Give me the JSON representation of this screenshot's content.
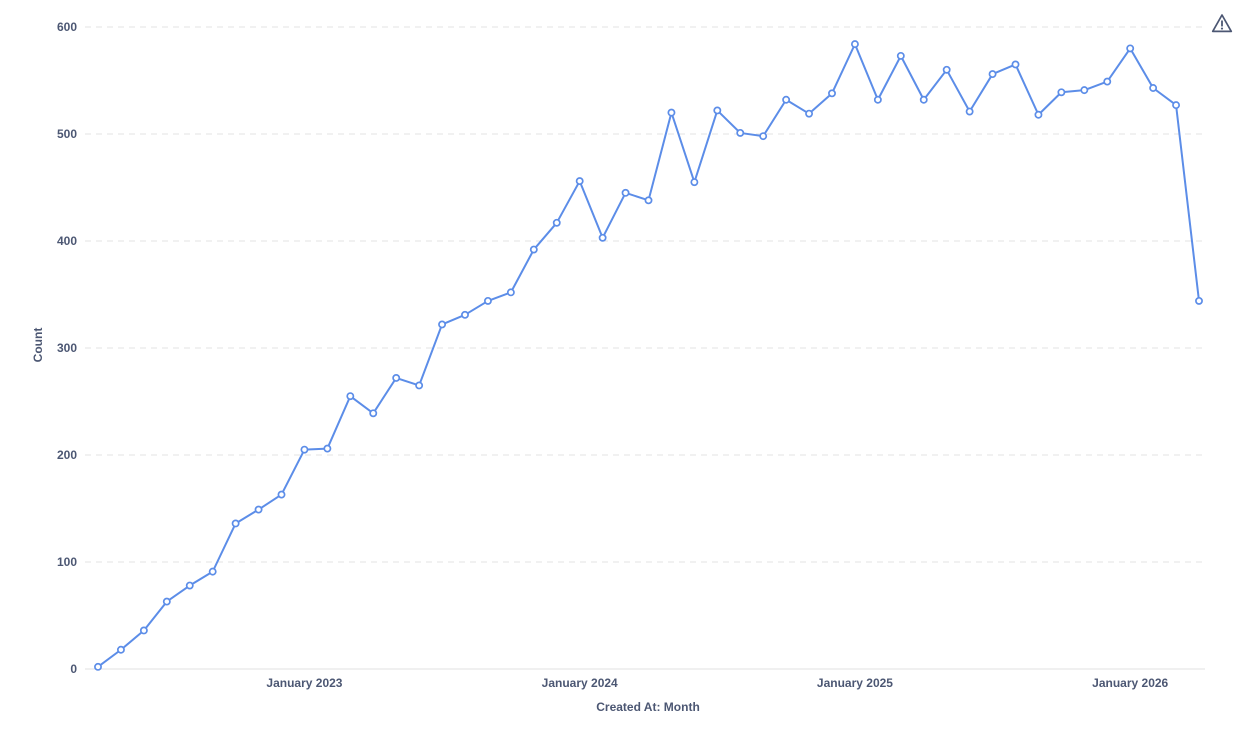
{
  "chart_data": {
    "type": "line",
    "title": "",
    "xlabel": "Created At: Month",
    "ylabel": "Count",
    "x": [
      "Apr 2022",
      "May 2022",
      "Jun 2022",
      "Jul 2022",
      "Aug 2022",
      "Sep 2022",
      "Oct 2022",
      "Nov 2022",
      "Dec 2022",
      "Jan 2023",
      "Feb 2023",
      "Mar 2023",
      "Apr 2023",
      "May 2023",
      "Jun 2023",
      "Jul 2023",
      "Aug 2023",
      "Sep 2023",
      "Oct 2023",
      "Nov 2023",
      "Dec 2023",
      "Jan 2024",
      "Feb 2024",
      "Mar 2024",
      "Apr 2024",
      "May 2024",
      "Jun 2024",
      "Jul 2024",
      "Aug 2024",
      "Sep 2024",
      "Oct 2024",
      "Nov 2024",
      "Dec 2024",
      "Jan 2025",
      "Feb 2025",
      "Mar 2025",
      "Apr 2025",
      "May 2025",
      "Jun 2025",
      "Jul 2025",
      "Aug 2025",
      "Sep 2025",
      "Oct 2025",
      "Nov 2025",
      "Dec 2025",
      "Jan 2026",
      "Feb 2026",
      "Mar 2026",
      "Apr 2026"
    ],
    "values": [
      2,
      18,
      36,
      63,
      78,
      91,
      136,
      149,
      163,
      205,
      206,
      255,
      239,
      272,
      265,
      322,
      331,
      344,
      352,
      392,
      417,
      456,
      403,
      445,
      438,
      520,
      455,
      522,
      501,
      498,
      532,
      519,
      538,
      584,
      532,
      573,
      532,
      560,
      521,
      556,
      565,
      518,
      539,
      541,
      549,
      580,
      543,
      527,
      344
    ],
    "ylim": [
      0,
      600
    ],
    "y_ticks": [
      0,
      100,
      200,
      300,
      400,
      500,
      600
    ],
    "x_tick_labels": [
      {
        "label": "January 2023",
        "index": 9
      },
      {
        "label": "January 2024",
        "index": 21
      },
      {
        "label": "January 2025",
        "index": 33
      },
      {
        "label": "January 2026",
        "index": 45
      }
    ],
    "grid": "dashed-horizontal",
    "legend": "none",
    "marker": "open-circle",
    "line_color": "#5c8de8",
    "grid_color": "#e3e3e3",
    "axis_line_color": "#e0e0e0",
    "label_color": "#4c5773"
  },
  "icons": {
    "warning": {
      "name": "warning-triangle",
      "color": "#4c5773"
    }
  }
}
